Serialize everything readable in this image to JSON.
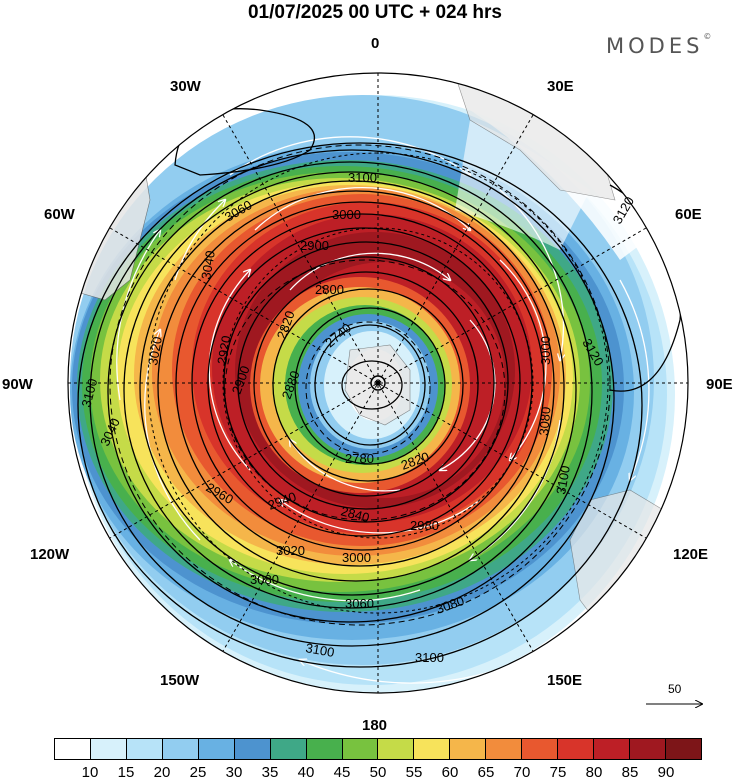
{
  "header": {
    "title": "01/07/2025  00 UTC  + 024 hrs",
    "brand": "MODES",
    "brand_mark": "©"
  },
  "map": {
    "projection": "polar-stereographic",
    "hemisphere": "south",
    "longitude_labels": {
      "top": "0",
      "top_right": "30E",
      "right_upper": "60E",
      "right": "90E",
      "right_lower": "120E",
      "bottom_right": "150E",
      "bottom": "180",
      "bottom_left": "150W",
      "left_lower": "120W",
      "left": "90W",
      "left_upper": "60W",
      "top_left": "30W"
    },
    "contour_labels": [
      "3100",
      "3080",
      "3060",
      "3040",
      "3020",
      "3000",
      "2980",
      "2960",
      "2940",
      "2920",
      "2900",
      "2880",
      "2860",
      "2840",
      "2820",
      "2800",
      "2780",
      "2760",
      "2740",
      "3120"
    ],
    "reference_vector_label": "50",
    "colors": {
      "background": "#ffffff",
      "land": "#e6e6e6",
      "contour": "#000000",
      "wind_vectors": "#ffffff"
    }
  },
  "legend": {
    "tick_labels": [
      "10",
      "15",
      "20",
      "25",
      "30",
      "35",
      "40",
      "45",
      "50",
      "55",
      "60",
      "65",
      "70",
      "75",
      "80",
      "85",
      "90"
    ],
    "colors": [
      "#ffffff",
      "#d7f1fb",
      "#b7e3f8",
      "#92cdf0",
      "#68b1e3",
      "#4d93cf",
      "#3fa887",
      "#48b04d",
      "#78c23f",
      "#c5db48",
      "#f7e35b",
      "#f5b64a",
      "#f28c3c",
      "#e8582f",
      "#d8342a",
      "#bd1f26",
      "#9f1820",
      "#7d1518"
    ]
  }
}
